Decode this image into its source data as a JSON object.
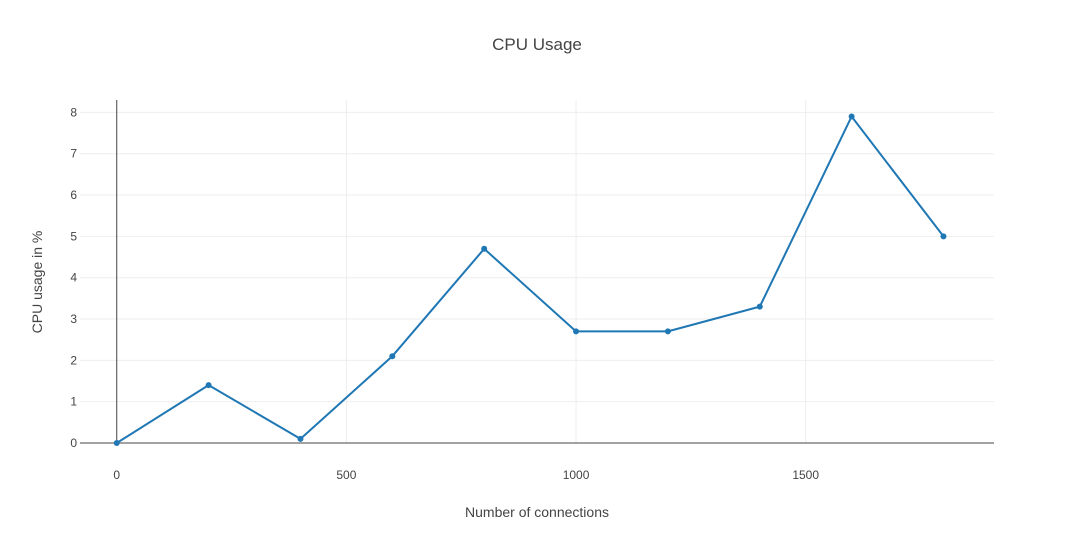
{
  "chart_data": {
    "type": "line",
    "title": "CPU Usage",
    "xlabel": "Number of connections",
    "ylabel": "CPU usage in %",
    "xlim": [
      -80,
      1910
    ],
    "ylim": [
      0,
      8.3
    ],
    "xticks": [
      0,
      500,
      1000,
      1500
    ],
    "yticks": [
      0,
      1,
      2,
      3,
      4,
      5,
      6,
      7,
      8
    ],
    "grid": true,
    "legend": "none",
    "series": [
      {
        "color": "#1f77b4",
        "x": [
          0,
          200,
          400,
          600,
          800,
          1000,
          1200,
          1400,
          1600,
          1800
        ],
        "y": [
          0,
          1.4,
          0.1,
          2.1,
          4.7,
          2.7,
          2.7,
          3.3,
          7.9,
          5.0
        ]
      }
    ]
  }
}
